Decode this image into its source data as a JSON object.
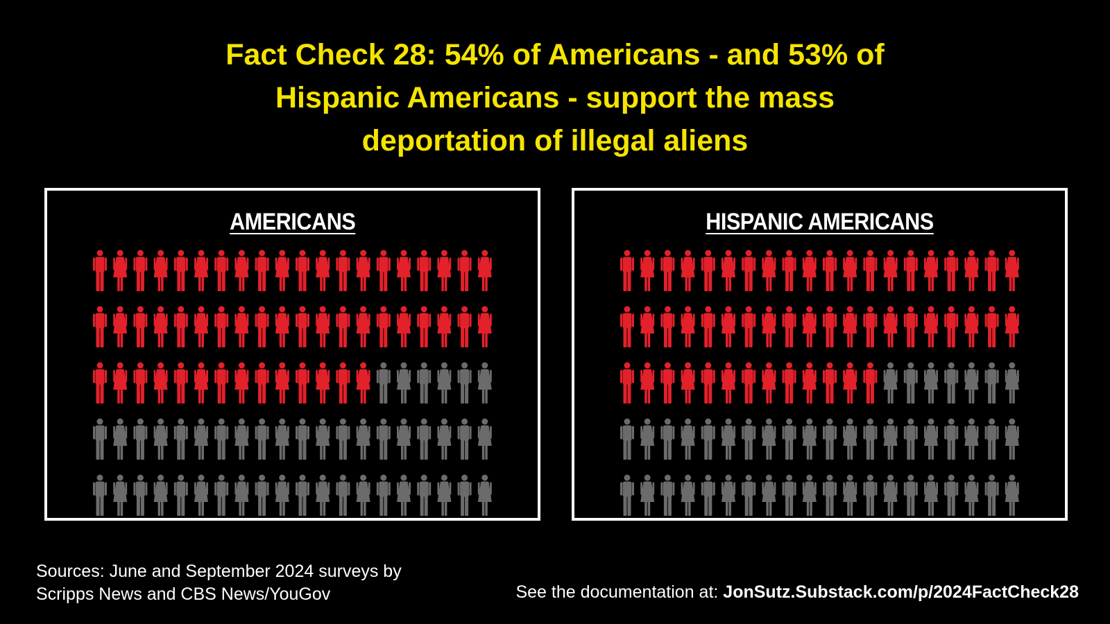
{
  "title": {
    "line1": "Fact Check 28: 54% of Americans - and 53% of",
    "line2": "Hispanic Americans - support the mass",
    "line3": "deportation of illegal aliens"
  },
  "chart_data": [
    {
      "type": "pictogram",
      "title": "AMERICANS",
      "total_icons": 100,
      "highlighted_icons": 54,
      "highlight_color": "#e3212b",
      "base_color": "#6b6b6b"
    },
    {
      "type": "pictogram",
      "title": "HISPANIC AMERICANS",
      "total_icons": 100,
      "highlighted_icons": 53,
      "highlight_color": "#e3212b",
      "base_color": "#6b6b6b"
    }
  ],
  "footer": {
    "sources_line1": "Sources: June and September 2024 surveys by",
    "sources_line2": "Scripps News and CBS News/YouGov",
    "doc_prefix": "See the documentation at: ",
    "doc_link": "JonSutz.Substack.com/p/2024FactCheck28"
  },
  "colors": {
    "background": "#000000",
    "title": "#f5e400",
    "border": "#ffffff"
  }
}
